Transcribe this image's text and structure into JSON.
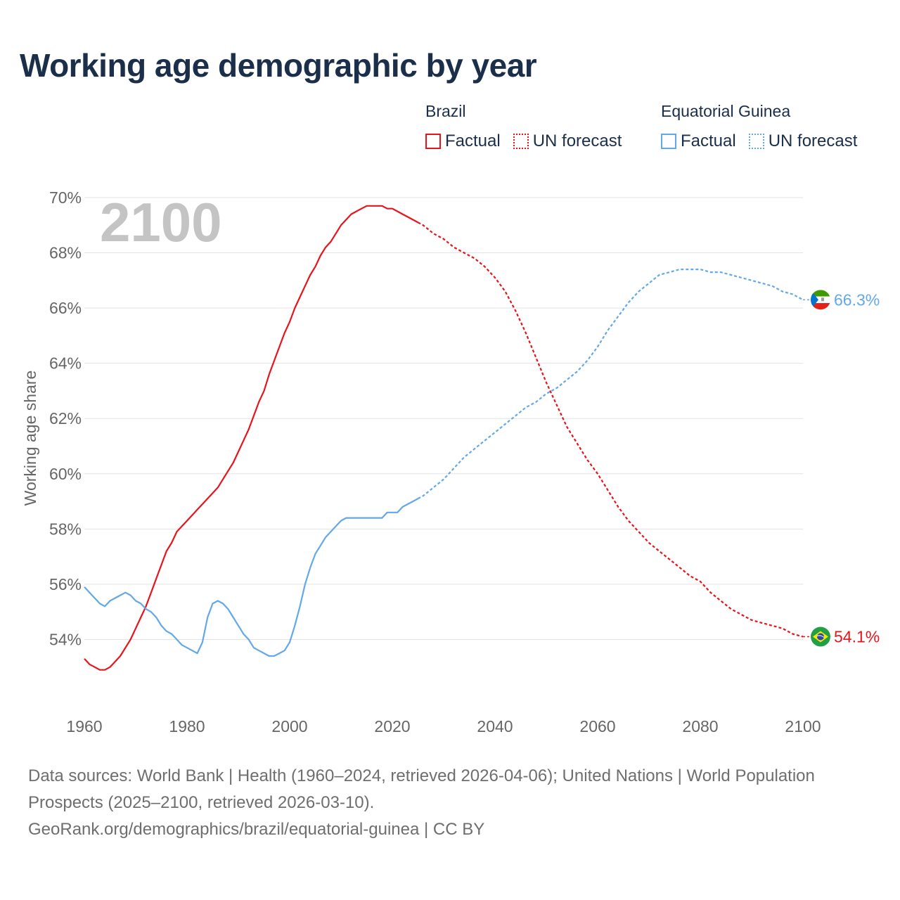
{
  "title": "Working age demographic by year",
  "legend": {
    "groups": [
      {
        "name": "Brazil",
        "color": "#e8141c",
        "factual_label": "Factual",
        "forecast_label": "UN forecast"
      },
      {
        "name": "Equatorial Guinea",
        "color": "#63a8e8",
        "factual_label": "Factual",
        "forecast_label": "UN forecast"
      }
    ]
  },
  "chart_data": {
    "type": "line",
    "title": "Working age demographic by year",
    "year_label": "2100",
    "xlabel": "",
    "ylabel": "Working age share",
    "xlim": [
      1960,
      2100
    ],
    "ylim": [
      52,
      70
    ],
    "x_ticks": [
      "1960",
      "1980",
      "2000",
      "2020",
      "2040",
      "2060",
      "2080",
      "2100"
    ],
    "y_ticks": [
      "54%",
      "56%",
      "58%",
      "60%",
      "62%",
      "64%",
      "66%",
      "68%",
      "70%"
    ],
    "grid": true,
    "forecast_start": 2025,
    "series": [
      {
        "name": "Brazil",
        "color": "#e8141c",
        "end_label": "54.1%",
        "flag": "brazil-flag",
        "points": [
          [
            1960,
            53.3
          ],
          [
            1961,
            53.1
          ],
          [
            1962,
            53.0
          ],
          [
            1963,
            52.9
          ],
          [
            1964,
            52.9
          ],
          [
            1965,
            53.0
          ],
          [
            1966,
            53.2
          ],
          [
            1967,
            53.4
          ],
          [
            1968,
            53.7
          ],
          [
            1969,
            54.0
          ],
          [
            1970,
            54.4
          ],
          [
            1971,
            54.8
          ],
          [
            1972,
            55.2
          ],
          [
            1973,
            55.7
          ],
          [
            1974,
            56.2
          ],
          [
            1975,
            56.7
          ],
          [
            1976,
            57.2
          ],
          [
            1977,
            57.5
          ],
          [
            1978,
            57.9
          ],
          [
            1979,
            58.1
          ],
          [
            1980,
            58.3
          ],
          [
            1981,
            58.5
          ],
          [
            1982,
            58.7
          ],
          [
            1983,
            58.9
          ],
          [
            1984,
            59.1
          ],
          [
            1985,
            59.3
          ],
          [
            1986,
            59.5
          ],
          [
            1987,
            59.8
          ],
          [
            1988,
            60.1
          ],
          [
            1989,
            60.4
          ],
          [
            1990,
            60.8
          ],
          [
            1991,
            61.2
          ],
          [
            1992,
            61.6
          ],
          [
            1993,
            62.1
          ],
          [
            1994,
            62.6
          ],
          [
            1995,
            63.0
          ],
          [
            1996,
            63.6
          ],
          [
            1997,
            64.1
          ],
          [
            1998,
            64.6
          ],
          [
            1999,
            65.1
          ],
          [
            2000,
            65.5
          ],
          [
            2001,
            66.0
          ],
          [
            2002,
            66.4
          ],
          [
            2003,
            66.8
          ],
          [
            2004,
            67.2
          ],
          [
            2005,
            67.5
          ],
          [
            2006,
            67.9
          ],
          [
            2007,
            68.2
          ],
          [
            2008,
            68.4
          ],
          [
            2009,
            68.7
          ],
          [
            2010,
            69.0
          ],
          [
            2011,
            69.2
          ],
          [
            2012,
            69.4
          ],
          [
            2013,
            69.5
          ],
          [
            2014,
            69.6
          ],
          [
            2015,
            69.7
          ],
          [
            2016,
            69.7
          ],
          [
            2017,
            69.7
          ],
          [
            2018,
            69.7
          ],
          [
            2019,
            69.6
          ],
          [
            2020,
            69.6
          ],
          [
            2021,
            69.5
          ],
          [
            2022,
            69.4
          ],
          [
            2023,
            69.3
          ],
          [
            2024,
            69.2
          ],
          [
            2025,
            69.1
          ],
          [
            2026,
            69.0
          ],
          [
            2028,
            68.7
          ],
          [
            2030,
            68.5
          ],
          [
            2032,
            68.2
          ],
          [
            2034,
            68.0
          ],
          [
            2036,
            67.8
          ],
          [
            2038,
            67.5
          ],
          [
            2040,
            67.1
          ],
          [
            2042,
            66.6
          ],
          [
            2044,
            65.9
          ],
          [
            2046,
            65.1
          ],
          [
            2048,
            64.2
          ],
          [
            2050,
            63.3
          ],
          [
            2052,
            62.5
          ],
          [
            2054,
            61.7
          ],
          [
            2056,
            61.1
          ],
          [
            2058,
            60.5
          ],
          [
            2060,
            60.0
          ],
          [
            2062,
            59.4
          ],
          [
            2064,
            58.8
          ],
          [
            2066,
            58.3
          ],
          [
            2068,
            57.9
          ],
          [
            2070,
            57.5
          ],
          [
            2072,
            57.2
          ],
          [
            2074,
            56.9
          ],
          [
            2076,
            56.6
          ],
          [
            2078,
            56.3
          ],
          [
            2080,
            56.1
          ],
          [
            2082,
            55.7
          ],
          [
            2084,
            55.4
          ],
          [
            2086,
            55.1
          ],
          [
            2088,
            54.9
          ],
          [
            2090,
            54.7
          ],
          [
            2092,
            54.6
          ],
          [
            2094,
            54.5
          ],
          [
            2096,
            54.4
          ],
          [
            2098,
            54.2
          ],
          [
            2100,
            54.1
          ]
        ]
      },
      {
        "name": "Equatorial Guinea",
        "color": "#63a8e8",
        "end_label": "66.3%",
        "flag": "equatorial-guinea-flag",
        "points": [
          [
            1960,
            55.9
          ],
          [
            1961,
            55.7
          ],
          [
            1962,
            55.5
          ],
          [
            1963,
            55.3
          ],
          [
            1964,
            55.2
          ],
          [
            1965,
            55.4
          ],
          [
            1966,
            55.5
          ],
          [
            1967,
            55.6
          ],
          [
            1968,
            55.7
          ],
          [
            1969,
            55.6
          ],
          [
            1970,
            55.4
          ],
          [
            1971,
            55.3
          ],
          [
            1972,
            55.1
          ],
          [
            1973,
            55.0
          ],
          [
            1974,
            54.8
          ],
          [
            1975,
            54.5
          ],
          [
            1976,
            54.3
          ],
          [
            1977,
            54.2
          ],
          [
            1978,
            54.0
          ],
          [
            1979,
            53.8
          ],
          [
            1980,
            53.7
          ],
          [
            1981,
            53.6
          ],
          [
            1982,
            53.5
          ],
          [
            1983,
            53.9
          ],
          [
            1984,
            54.8
          ],
          [
            1985,
            55.3
          ],
          [
            1986,
            55.4
          ],
          [
            1987,
            55.3
          ],
          [
            1988,
            55.1
          ],
          [
            1989,
            54.8
          ],
          [
            1990,
            54.5
          ],
          [
            1991,
            54.2
          ],
          [
            1992,
            54.0
          ],
          [
            1993,
            53.7
          ],
          [
            1994,
            53.6
          ],
          [
            1995,
            53.5
          ],
          [
            1996,
            53.4
          ],
          [
            1997,
            53.4
          ],
          [
            1998,
            53.5
          ],
          [
            1999,
            53.6
          ],
          [
            2000,
            53.9
          ],
          [
            2001,
            54.5
          ],
          [
            2002,
            55.2
          ],
          [
            2003,
            56.0
          ],
          [
            2004,
            56.6
          ],
          [
            2005,
            57.1
          ],
          [
            2006,
            57.4
          ],
          [
            2007,
            57.7
          ],
          [
            2008,
            57.9
          ],
          [
            2009,
            58.1
          ],
          [
            2010,
            58.3
          ],
          [
            2011,
            58.4
          ],
          [
            2012,
            58.4
          ],
          [
            2013,
            58.4
          ],
          [
            2014,
            58.4
          ],
          [
            2015,
            58.4
          ],
          [
            2016,
            58.4
          ],
          [
            2017,
            58.4
          ],
          [
            2018,
            58.4
          ],
          [
            2019,
            58.6
          ],
          [
            2020,
            58.6
          ],
          [
            2021,
            58.6
          ],
          [
            2022,
            58.8
          ],
          [
            2023,
            58.9
          ],
          [
            2024,
            59.0
          ],
          [
            2025,
            59.1
          ],
          [
            2026,
            59.2
          ],
          [
            2028,
            59.5
          ],
          [
            2030,
            59.8
          ],
          [
            2032,
            60.2
          ],
          [
            2034,
            60.6
          ],
          [
            2036,
            60.9
          ],
          [
            2038,
            61.2
          ],
          [
            2040,
            61.5
          ],
          [
            2042,
            61.8
          ],
          [
            2044,
            62.1
          ],
          [
            2046,
            62.4
          ],
          [
            2048,
            62.6
          ],
          [
            2050,
            62.9
          ],
          [
            2052,
            63.1
          ],
          [
            2054,
            63.4
          ],
          [
            2056,
            63.7
          ],
          [
            2058,
            64.1
          ],
          [
            2060,
            64.6
          ],
          [
            2062,
            65.2
          ],
          [
            2064,
            65.7
          ],
          [
            2066,
            66.2
          ],
          [
            2068,
            66.6
          ],
          [
            2070,
            66.9
          ],
          [
            2072,
            67.2
          ],
          [
            2074,
            67.3
          ],
          [
            2076,
            67.4
          ],
          [
            2078,
            67.4
          ],
          [
            2080,
            67.4
          ],
          [
            2082,
            67.3
          ],
          [
            2084,
            67.3
          ],
          [
            2086,
            67.2
          ],
          [
            2088,
            67.1
          ],
          [
            2090,
            67.0
          ],
          [
            2092,
            66.9
          ],
          [
            2094,
            66.8
          ],
          [
            2096,
            66.6
          ],
          [
            2098,
            66.5
          ],
          [
            2100,
            66.3
          ]
        ]
      }
    ]
  },
  "footer": {
    "sources": "Data sources: World Bank | Health (1960–2024, retrieved 2026-04-06); United Nations | World Population Prospects (2025–2100, retrieved 2026-03-10).",
    "credit": "GeoRank.org/demographics/brazil/equatorial-guinea | CC BY"
  }
}
